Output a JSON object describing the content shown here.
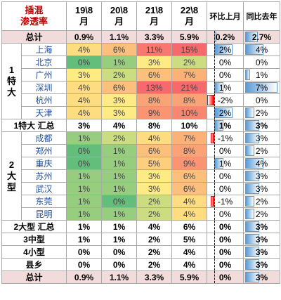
{
  "header": {
    "title": "插混\n渗透率",
    "cols": [
      "19\\8\n月",
      "20\\8\n月",
      "21\\8\n月",
      "22\\8\n月"
    ],
    "mom": "环比上月",
    "yoy": "同比去年"
  },
  "colors": {
    "green": "#63be7b",
    "yellow": "#ffeb84",
    "red": "#f8696b",
    "bar_blue": "#5b9bd5",
    "bar_red": "#ff0000",
    "total_row": "#f2dcdb"
  },
  "chart_data": {
    "type": "table",
    "series_columns": [
      "19\\8月",
      "20\\8月",
      "21\\8月",
      "22\\8月",
      "环比上月",
      "同比去年"
    ],
    "rows": [
      {
        "label": "总计",
        "group": "",
        "values": [
          "0.9%",
          "1.1%",
          "3.3%",
          "5.9%",
          "0.2%",
          "2.7%"
        ],
        "pct": [
          0.9,
          1.1,
          3.3,
          5.9
        ],
        "mom": 0.2,
        "yoy": 2.7,
        "kind": "total"
      },
      {
        "label": "上海",
        "group": "1\n特\n大",
        "values": [
          "4%",
          "6%",
          "11%",
          "15%",
          "2%",
          "4%"
        ],
        "pct": [
          4,
          6,
          11,
          15
        ],
        "mom": 2,
        "yoy": 4
      },
      {
        "label": "北京",
        "group": "",
        "values": [
          "0%",
          "1%",
          "3%",
          "2%",
          "0%",
          "0%"
        ],
        "pct": [
          0,
          1,
          3,
          2
        ],
        "mom": 0,
        "yoy": 0
      },
      {
        "label": "广州",
        "group": "",
        "values": [
          "3%",
          "2%",
          "6%",
          "7%",
          "0%",
          "1%"
        ],
        "pct": [
          3,
          2,
          6,
          7
        ],
        "mom": 0,
        "yoy": 1
      },
      {
        "label": "深圳",
        "group": "",
        "values": [
          "4%",
          "6%",
          "13%",
          "21%",
          "1%",
          "7%"
        ],
        "pct": [
          4,
          6,
          13,
          21
        ],
        "mom": 1,
        "yoy": 7
      },
      {
        "label": "杭州",
        "group": "",
        "values": [
          "4%",
          "3%",
          "8%",
          "8%",
          "-2%",
          "0%"
        ],
        "pct": [
          4,
          3,
          8,
          8
        ],
        "mom": -2,
        "yoy": 0
      },
      {
        "label": "天津",
        "group": "",
        "values": [
          "4%",
          "3%",
          "9%",
          "10%",
          "2%",
          "2%"
        ],
        "pct": [
          4,
          3,
          9,
          10
        ],
        "mom": 2,
        "yoy": 2
      },
      {
        "label": "1特大 汇总",
        "group": "",
        "values": [
          "3%",
          "4%",
          "8%",
          "10%",
          "1%",
          "3%"
        ],
        "pct": [
          3,
          4,
          8,
          10
        ],
        "mom": 1,
        "yoy": 3,
        "kind": "summary"
      },
      {
        "label": "成都",
        "group": "2\n大\n型",
        "values": [
          "1%",
          "2%",
          "4%",
          "7%",
          "-1%",
          "3%"
        ],
        "pct": [
          1,
          2,
          4,
          7
        ],
        "mom": -1,
        "yoy": 3
      },
      {
        "label": "郑州",
        "group": "",
        "values": [
          "0%",
          "1%",
          "6%",
          "8%",
          "0%",
          "2%"
        ],
        "pct": [
          0,
          1,
          6,
          8
        ],
        "mom": 0,
        "yoy": 2
      },
      {
        "label": "重庆",
        "group": "",
        "values": [
          "0%",
          "1%",
          "5%",
          "9%",
          "1%",
          "4%"
        ],
        "pct": [
          0,
          1,
          5,
          9
        ],
        "mom": 1,
        "yoy": 4
      },
      {
        "label": "苏州",
        "group": "",
        "values": [
          "1%",
          "1%",
          "3%",
          "6%",
          "0%",
          "3%"
        ],
        "pct": [
          1,
          1,
          3,
          6
        ],
        "mom": 0,
        "yoy": 3
      },
      {
        "label": "武汉",
        "group": "",
        "values": [
          "1%",
          "1%",
          "3%",
          "6%",
          "0%",
          "3%"
        ],
        "pct": [
          1,
          1,
          3,
          6
        ],
        "mom": 0,
        "yoy": 3
      },
      {
        "label": "东莞",
        "group": "",
        "values": [
          "1%",
          "0%",
          "2%",
          "4%",
          "-1%",
          "2%"
        ],
        "pct": [
          1,
          0,
          2,
          4
        ],
        "mom": -1,
        "yoy": 2
      },
      {
        "label": "昆明",
        "group": "",
        "values": [
          "1%",
          "1%",
          "2%",
          "4%",
          "0%",
          "2%"
        ],
        "pct": [
          1,
          1,
          2,
          4
        ],
        "mom": 0,
        "yoy": 2
      },
      {
        "label": "2大型 汇总",
        "group": "",
        "values": [
          "1%",
          "1%",
          "4%",
          "6%",
          "0%",
          "3%"
        ],
        "pct": [
          1,
          1,
          4,
          6
        ],
        "mom": 0,
        "yoy": 3,
        "kind": "summary"
      },
      {
        "label": "3中型",
        "group": "",
        "values": [
          "1%",
          "1%",
          "2%",
          "5%",
          "0%",
          "3%"
        ],
        "pct": [
          1,
          1,
          2,
          5
        ],
        "mom": 0,
        "yoy": 3,
        "kind": "summary"
      },
      {
        "label": "4小型",
        "group": "",
        "values": [
          "0%",
          "0%",
          "2%",
          "4%",
          "0%",
          "3%"
        ],
        "pct": [
          0,
          0,
          2,
          4
        ],
        "mom": 0,
        "yoy": 3,
        "kind": "summary"
      },
      {
        "label": "县乡",
        "group": "",
        "values": [
          "0%",
          "0%",
          "2%",
          "4%",
          "0%",
          "3%"
        ],
        "pct": [
          0,
          0,
          2,
          4
        ],
        "mom": 0,
        "yoy": 3,
        "kind": "summary"
      },
      {
        "label": "总计",
        "group": "",
        "values": [
          "0.9%",
          "1.1%",
          "3.3%",
          "5.9%",
          "0%",
          "3%"
        ],
        "pct": [
          0.9,
          1.1,
          3.3,
          5.9
        ],
        "mom": 0,
        "yoy": 3,
        "kind": "total"
      }
    ],
    "heatmap_columns": [
      1,
      2,
      3,
      4
    ],
    "heatmap_rows": [
      1,
      2,
      3,
      4,
      5,
      6,
      8,
      9,
      10,
      11,
      12,
      13,
      14
    ]
  }
}
